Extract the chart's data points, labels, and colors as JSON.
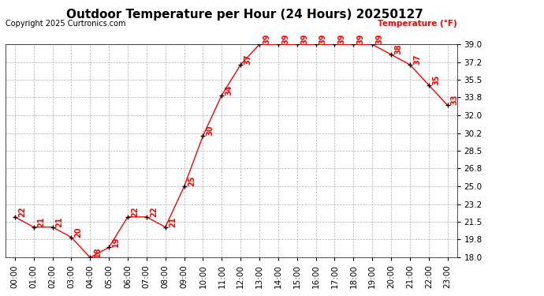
{
  "title": "Outdoor Temperature per Hour (24 Hours) 20250127",
  "copyright": "Copyright 2025 Curtronics.com",
  "ylabel": "Temperature (°F)",
  "hours": [
    "00:00",
    "01:00",
    "02:00",
    "03:00",
    "04:00",
    "05:00",
    "06:00",
    "07:00",
    "08:00",
    "09:00",
    "10:00",
    "11:00",
    "12:00",
    "13:00",
    "14:00",
    "15:00",
    "16:00",
    "17:00",
    "18:00",
    "19:00",
    "20:00",
    "21:00",
    "22:00",
    "23:00"
  ],
  "temperatures": [
    22,
    21,
    21,
    20,
    18,
    19,
    22,
    22,
    21,
    25,
    30,
    34,
    37,
    39,
    39,
    39,
    39,
    39,
    39,
    39,
    38,
    37,
    35,
    33
  ],
  "ylim_min": 18.0,
  "ylim_max": 39.0,
  "yticks": [
    18.0,
    19.8,
    21.5,
    23.2,
    25.0,
    26.8,
    28.5,
    30.2,
    32.0,
    33.8,
    35.5,
    37.2,
    39.0
  ],
  "line_color": "red",
  "marker_color": "black",
  "label_color": "red",
  "title_color": "black",
  "copyright_color": "black",
  "ylabel_color": "red",
  "background_color": "white",
  "grid_color": "#b0b0b0",
  "title_fontsize": 11,
  "label_fontsize": 7.5,
  "tick_fontsize": 7.5,
  "copyright_fontsize": 7,
  "annotation_fontsize": 7
}
